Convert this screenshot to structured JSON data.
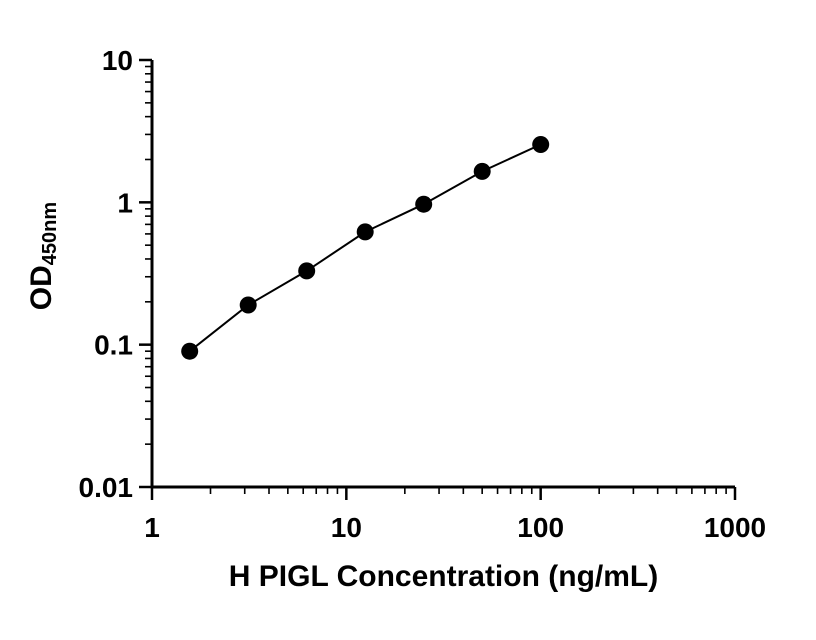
{
  "chart_data": {
    "type": "line",
    "title": "",
    "xlabel": "H PIGL Concentration (ng/mL)",
    "ylabel": "OD",
    "ylabel_sub": "450nm",
    "xscale": "log",
    "yscale": "log",
    "xlim": [
      1,
      1000
    ],
    "ylim": [
      0.01,
      10
    ],
    "x": [
      1.563,
      3.125,
      6.25,
      12.5,
      25,
      50,
      100
    ],
    "y": [
      0.09,
      0.19,
      0.33,
      0.62,
      0.97,
      1.65,
      2.55
    ],
    "x_major_ticks": [
      1,
      10,
      100,
      1000
    ],
    "x_tick_labels": [
      "1",
      "10",
      "100",
      "1000"
    ],
    "y_major_ticks": [
      0.01,
      0.1,
      1,
      10
    ],
    "y_tick_labels": [
      "0.01",
      "0.1",
      "1",
      "10"
    ],
    "grid": false,
    "legend": "none",
    "line_color": "#000000",
    "marker_color": "#000000",
    "marker": "circle",
    "series_name": "standard-curve"
  }
}
